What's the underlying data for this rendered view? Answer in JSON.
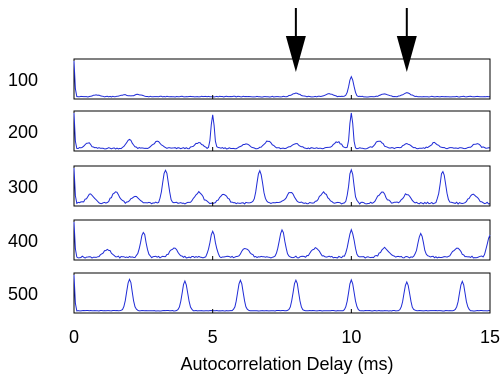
{
  "chart_data": {
    "type": "line",
    "title": "",
    "xlabel": "Autocorrelation Delay (ms)",
    "xlim": [
      0,
      15
    ],
    "xticks": [
      0,
      5,
      10,
      15
    ],
    "tick_labels": [
      "0",
      "5",
      "10",
      "15"
    ],
    "arrows_at": [
      8,
      12
    ],
    "line_color": "#1f2bd6",
    "panels": [
      {
        "name": "100",
        "ylim": [
          0,
          1
        ],
        "peaks": [
          {
            "x": 0.0,
            "h": 1.0,
            "w": 0.04
          },
          {
            "x": 0.8,
            "h": 0.05,
            "w": 0.15
          },
          {
            "x": 1.8,
            "h": 0.05,
            "w": 0.2
          },
          {
            "x": 2.3,
            "h": 0.06,
            "w": 0.2
          },
          {
            "x": 8.0,
            "h": 0.1,
            "w": 0.2
          },
          {
            "x": 9.2,
            "h": 0.08,
            "w": 0.2
          },
          {
            "x": 10.0,
            "h": 0.55,
            "w": 0.12
          },
          {
            "x": 11.2,
            "h": 0.07,
            "w": 0.2
          },
          {
            "x": 12.0,
            "h": 0.1,
            "w": 0.2
          }
        ],
        "noise": 0.02
      },
      {
        "name": "200",
        "ylim": [
          0,
          1
        ],
        "peaks": [
          {
            "x": 0.0,
            "h": 1.0,
            "w": 0.04
          },
          {
            "x": 0.5,
            "h": 0.15,
            "w": 0.15
          },
          {
            "x": 2.0,
            "h": 0.25,
            "w": 0.15
          },
          {
            "x": 3.0,
            "h": 0.18,
            "w": 0.2
          },
          {
            "x": 4.5,
            "h": 0.15,
            "w": 0.2
          },
          {
            "x": 5.0,
            "h": 0.95,
            "w": 0.08
          },
          {
            "x": 6.2,
            "h": 0.12,
            "w": 0.2
          },
          {
            "x": 7.0,
            "h": 0.2,
            "w": 0.2
          },
          {
            "x": 8.0,
            "h": 0.12,
            "w": 0.2
          },
          {
            "x": 9.5,
            "h": 0.18,
            "w": 0.2
          },
          {
            "x": 10.0,
            "h": 1.0,
            "w": 0.08
          },
          {
            "x": 11.0,
            "h": 0.2,
            "w": 0.2
          },
          {
            "x": 12.0,
            "h": 0.12,
            "w": 0.2
          },
          {
            "x": 13.0,
            "h": 0.15,
            "w": 0.2
          },
          {
            "x": 14.5,
            "h": 0.12,
            "w": 0.2
          }
        ],
        "noise": 0.04
      },
      {
        "name": "300",
        "ylim": [
          0,
          1
        ],
        "peaks": [
          {
            "x": 0.0,
            "h": 1.0,
            "w": 0.04
          },
          {
            "x": 0.6,
            "h": 0.25,
            "w": 0.2
          },
          {
            "x": 1.5,
            "h": 0.3,
            "w": 0.2
          },
          {
            "x": 2.2,
            "h": 0.2,
            "w": 0.2
          },
          {
            "x": 3.3,
            "h": 0.92,
            "w": 0.14
          },
          {
            "x": 4.5,
            "h": 0.3,
            "w": 0.2
          },
          {
            "x": 5.4,
            "h": 0.25,
            "w": 0.2
          },
          {
            "x": 6.7,
            "h": 0.9,
            "w": 0.14
          },
          {
            "x": 7.8,
            "h": 0.3,
            "w": 0.2
          },
          {
            "x": 9.0,
            "h": 0.3,
            "w": 0.2
          },
          {
            "x": 10.0,
            "h": 0.95,
            "w": 0.12
          },
          {
            "x": 11.1,
            "h": 0.3,
            "w": 0.2
          },
          {
            "x": 12.0,
            "h": 0.25,
            "w": 0.2
          },
          {
            "x": 13.3,
            "h": 0.9,
            "w": 0.14
          },
          {
            "x": 14.4,
            "h": 0.25,
            "w": 0.2
          }
        ],
        "noise": 0.05
      },
      {
        "name": "400",
        "ylim": [
          0,
          1
        ],
        "peaks": [
          {
            "x": 0.0,
            "h": 1.0,
            "w": 0.04
          },
          {
            "x": 1.2,
            "h": 0.2,
            "w": 0.2
          },
          {
            "x": 2.5,
            "h": 0.7,
            "w": 0.14
          },
          {
            "x": 3.6,
            "h": 0.25,
            "w": 0.2
          },
          {
            "x": 5.0,
            "h": 0.7,
            "w": 0.14
          },
          {
            "x": 6.2,
            "h": 0.25,
            "w": 0.2
          },
          {
            "x": 7.5,
            "h": 0.75,
            "w": 0.14
          },
          {
            "x": 8.7,
            "h": 0.25,
            "w": 0.2
          },
          {
            "x": 10.0,
            "h": 0.75,
            "w": 0.14
          },
          {
            "x": 11.2,
            "h": 0.25,
            "w": 0.2
          },
          {
            "x": 12.5,
            "h": 0.65,
            "w": 0.14
          },
          {
            "x": 13.8,
            "h": 0.25,
            "w": 0.2
          },
          {
            "x": 15.0,
            "h": 0.6,
            "w": 0.14
          }
        ],
        "noise": 0.05
      },
      {
        "name": "500",
        "ylim": [
          0,
          1
        ],
        "peaks": [
          {
            "x": 0.0,
            "h": 1.0,
            "w": 0.04
          },
          {
            "x": 2.0,
            "h": 0.88,
            "w": 0.14
          },
          {
            "x": 4.0,
            "h": 0.82,
            "w": 0.14
          },
          {
            "x": 6.0,
            "h": 0.85,
            "w": 0.14
          },
          {
            "x": 8.0,
            "h": 0.85,
            "w": 0.14
          },
          {
            "x": 10.0,
            "h": 0.85,
            "w": 0.14
          },
          {
            "x": 12.0,
            "h": 0.8,
            "w": 0.14
          },
          {
            "x": 14.0,
            "h": 0.82,
            "w": 0.14
          }
        ],
        "noise": 0.015
      }
    ]
  }
}
